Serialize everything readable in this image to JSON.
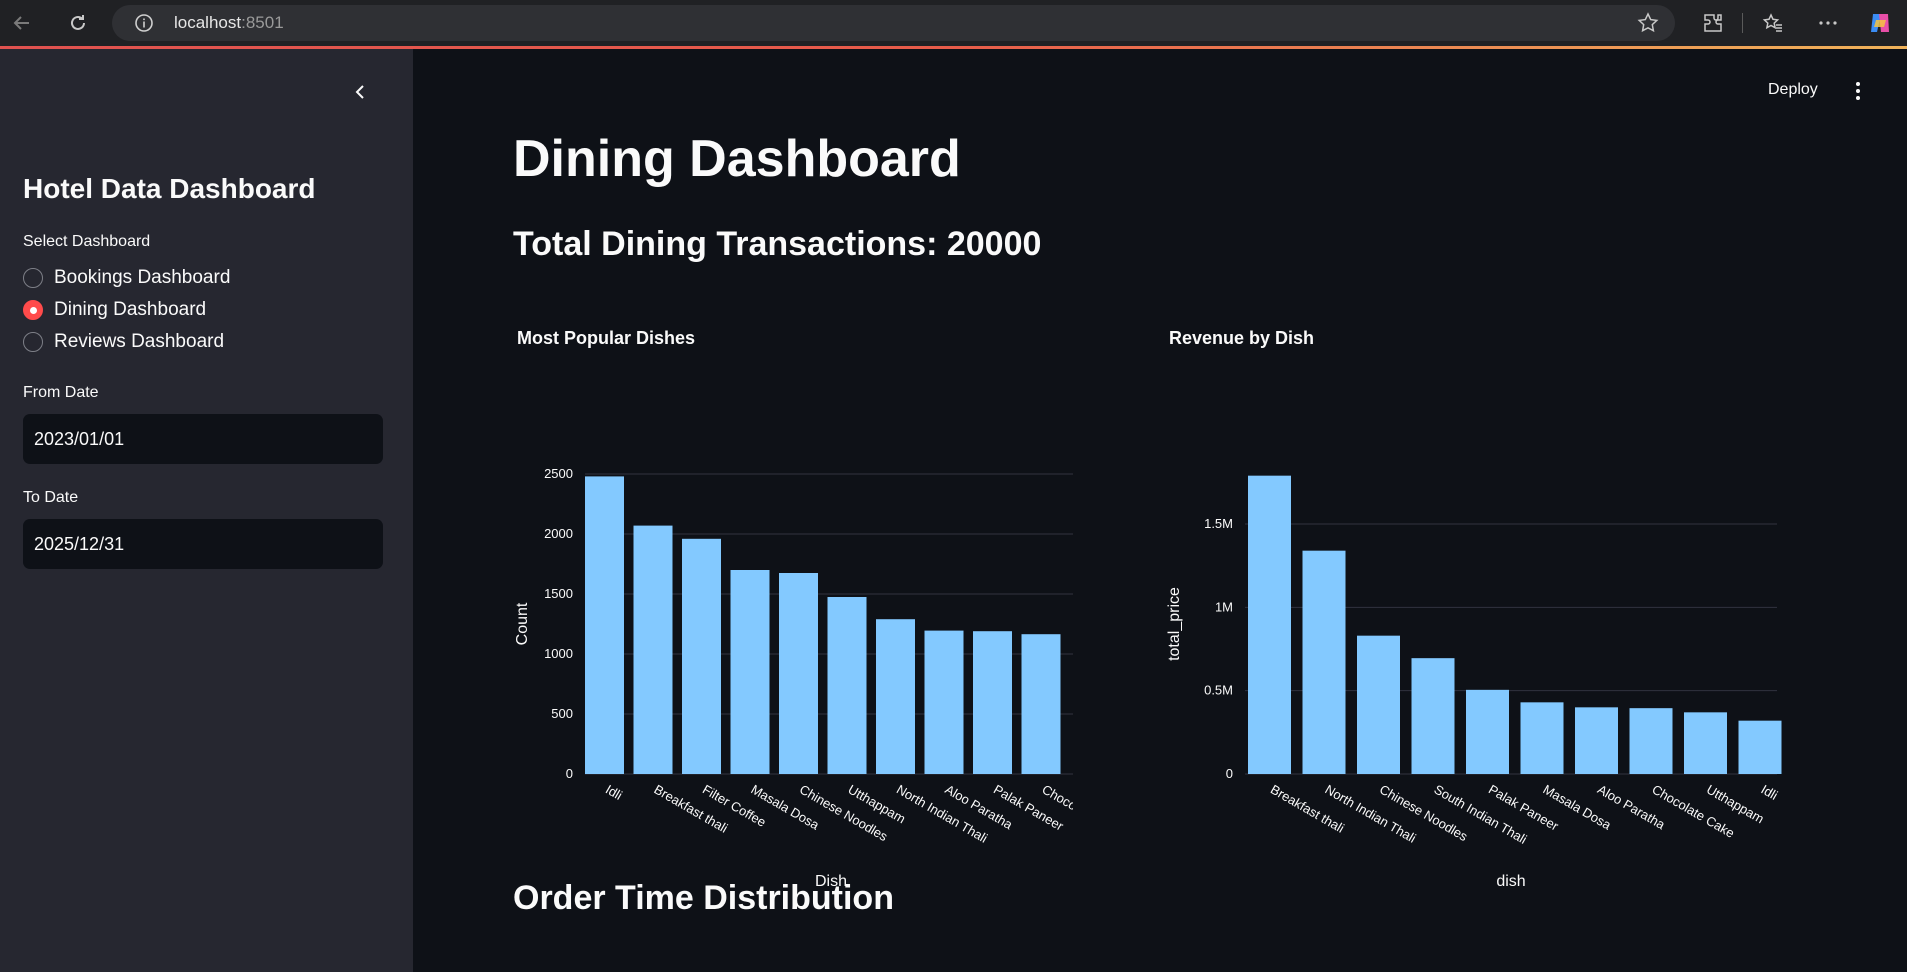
{
  "browser": {
    "url_host": "localhost",
    "url_port": ":8501"
  },
  "sidebar": {
    "title": "Hotel Data Dashboard",
    "select_label": "Select Dashboard",
    "options": [
      {
        "label": "Bookings Dashboard",
        "selected": false
      },
      {
        "label": "Dining Dashboard",
        "selected": true
      },
      {
        "label": "Reviews Dashboard",
        "selected": false
      }
    ],
    "from_label": "From Date",
    "from_value": "2023/01/01",
    "to_label": "To Date",
    "to_value": "2025/12/31"
  },
  "header": {
    "deploy_label": "Deploy"
  },
  "main": {
    "title": "Dining Dashboard",
    "subtitle": "Total Dining Transactions: 20000",
    "section2_title": "Order Time Distribution"
  },
  "colors": {
    "accent": "#ff4b4b",
    "bar": "#83c9ff",
    "background": "#0e1117",
    "sidebar": "#262730"
  },
  "chart_data": [
    {
      "type": "bar",
      "title": "Most Popular Dishes",
      "xlabel": "Dish",
      "ylabel": "Count",
      "categories": [
        "Idli",
        "Breakfast thali",
        "Filter Coffee",
        "Masala Dosa",
        "Chinese Noodles",
        "Utthappam",
        "North Indian Thali",
        "Aloo Paratha",
        "Palak Paneer",
        "Chocolate Cake"
      ],
      "values": [
        2480,
        2070,
        1960,
        1700,
        1675,
        1475,
        1290,
        1195,
        1190,
        1165
      ],
      "ylim": [
        0,
        2500
      ],
      "yticks": [
        0,
        500,
        1000,
        1500,
        2000,
        2500
      ],
      "ytick_labels": [
        "0",
        "500",
        "1000",
        "1500",
        "2000",
        "2500"
      ],
      "grid": true
    },
    {
      "type": "bar",
      "title": "Revenue by Dish",
      "xlabel": "dish",
      "ylabel": "total_price",
      "categories": [
        "Breakfast thali",
        "North Indian Thali",
        "Chinese Noodles",
        "South Indian Thali",
        "Palak Paneer",
        "Masala Dosa",
        "Aloo Paratha",
        "Chocolate Cake",
        "Utthappam",
        "Idli"
      ],
      "values": [
        1790000,
        1340000,
        830000,
        695000,
        505000,
        430000,
        400000,
        395000,
        370000,
        320000
      ],
      "ylim": [
        0,
        1800000
      ],
      "yticks": [
        0,
        500000,
        1000000,
        1500000
      ],
      "ytick_labels": [
        "0",
        "0.5M",
        "1M",
        "1.5M"
      ],
      "grid": true
    }
  ]
}
